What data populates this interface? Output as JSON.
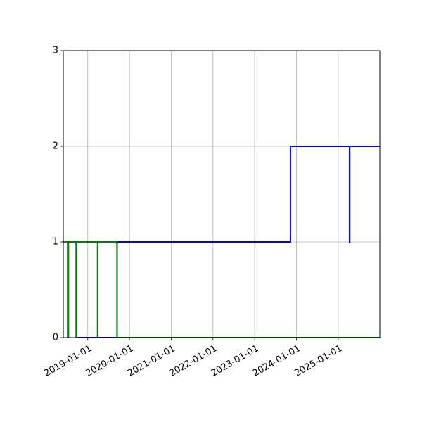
{
  "chart_data": {
    "type": "line",
    "title": "",
    "xlabel": "",
    "ylabel": "",
    "x_type": "date",
    "xlim": [
      "2018-06-01",
      "2025-12-31"
    ],
    "ylim": [
      0,
      3
    ],
    "grid": true,
    "legend": "none",
    "x_ticks": [
      "2019-01-01",
      "2020-01-01",
      "2021-01-01",
      "2022-01-01",
      "2023-01-01",
      "2024-01-01",
      "2025-01-01"
    ],
    "x_tick_labels": [
      "2019-01-01",
      "2020-01-01",
      "2021-01-01",
      "2022-01-01",
      "2023-01-01",
      "2024-01-01",
      "2025-01-01"
    ],
    "y_ticks": [
      0,
      1,
      2,
      3
    ],
    "y_tick_labels": [
      "0",
      "1",
      "2",
      "3"
    ],
    "series": [
      {
        "color": "#0000ff",
        "style": "step",
        "x": [
          "2018-06-01",
          "2018-07-10",
          "2018-07-10",
          "2018-07-12",
          "2018-07-12",
          "2018-09-22",
          "2018-09-22",
          "2018-09-24",
          "2018-09-24",
          "2019-09-15",
          "2019-09-15",
          "2023-11-10",
          "2023-11-10",
          "2025-04-10",
          "2025-04-10",
          "2025-04-12",
          "2025-04-12",
          "2025-12-31"
        ],
        "y": [
          1,
          1,
          0,
          0,
          1,
          1,
          0,
          0,
          0,
          0,
          1,
          1,
          2,
          2,
          1,
          1,
          2,
          2
        ]
      },
      {
        "color": "#008000",
        "style": "step",
        "x": [
          "2018-06-01",
          "2018-07-14",
          "2018-07-14",
          "2018-07-16",
          "2018-07-16",
          "2018-09-24",
          "2018-09-24",
          "2018-09-26",
          "2018-09-26",
          "2019-03-28",
          "2019-03-28",
          "2019-03-30",
          "2019-03-30",
          "2019-09-14",
          "2019-09-14",
          "2025-12-31"
        ],
        "y": [
          1,
          1,
          0,
          0,
          1,
          1,
          0,
          0,
          1,
          1,
          0,
          0,
          1,
          1,
          0,
          0
        ]
      }
    ]
  }
}
